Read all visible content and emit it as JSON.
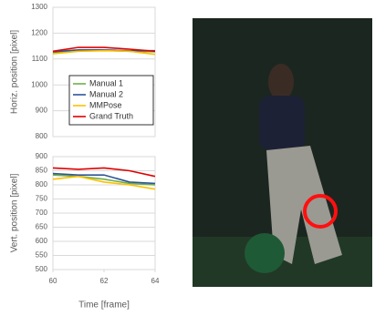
{
  "chart_data": [
    {
      "type": "line",
      "ylabel": "Horiz. position [pixel]",
      "x": [
        60,
        61,
        62,
        63,
        64
      ],
      "xlim": [
        60,
        64
      ],
      "ylim": [
        800,
        1300
      ],
      "yticks": [
        800,
        900,
        1000,
        1100,
        1200,
        1300
      ],
      "grid": true,
      "legend": "center",
      "series": [
        {
          "name": "Manual 1",
          "color": "#70ad47",
          "values": [
            1125,
            1132,
            1133,
            1130,
            1128
          ]
        },
        {
          "name": "Manual 2",
          "color": "#2f5597",
          "values": [
            1128,
            1135,
            1135,
            1132,
            1132
          ]
        },
        {
          "name": "MMPose",
          "color": "#ffc000",
          "values": [
            1120,
            1130,
            1132,
            1130,
            1118
          ]
        },
        {
          "name": "Grand Truth",
          "color": "#e00000",
          "values": [
            1130,
            1145,
            1145,
            1138,
            1130
          ]
        }
      ]
    },
    {
      "type": "line",
      "ylabel": "Vert. position [pixel]",
      "xlabel": "Time [frame]",
      "x": [
        60,
        61,
        62,
        63,
        64
      ],
      "xlim": [
        60,
        64
      ],
      "xticks": [
        60,
        62,
        64
      ],
      "ylim": [
        500,
        900
      ],
      "yticks": [
        500,
        550,
        600,
        650,
        700,
        750,
        800,
        850,
        900
      ],
      "grid": true,
      "series": [
        {
          "color": "#70ad47",
          "values": [
            835,
            830,
            820,
            805,
            800
          ]
        },
        {
          "color": "#2f5597",
          "values": [
            840,
            835,
            835,
            810,
            805
          ]
        },
        {
          "color": "#ffc000",
          "values": [
            820,
            830,
            810,
            800,
            785
          ]
        },
        {
          "color": "#e00000",
          "values": [
            860,
            855,
            860,
            850,
            830
          ]
        }
      ]
    }
  ]
}
